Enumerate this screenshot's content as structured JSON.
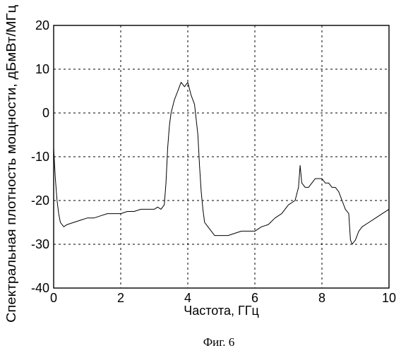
{
  "chart_data": {
    "type": "line",
    "title": "",
    "xlabel": "Частота, ГГц",
    "ylabel": "Спектральная плотность мощности, дБмВт/МГц",
    "xlim": [
      0,
      10
    ],
    "ylim": [
      -40,
      20
    ],
    "xticks": [
      "0",
      "2",
      "4",
      "6",
      "8",
      "10"
    ],
    "yticks": [
      "20",
      "10",
      "0",
      "-10",
      "-20",
      "-30",
      "-40"
    ],
    "grid": true,
    "series": [
      {
        "x": [
          0.0,
          0.05,
          0.1,
          0.15,
          0.2,
          0.3,
          0.4,
          0.6,
          0.8,
          1.0,
          1.2,
          1.4,
          1.6,
          1.8,
          2.0,
          2.2,
          2.4,
          2.6,
          2.8,
          3.0,
          3.1,
          3.2,
          3.3,
          3.35,
          3.4,
          3.45,
          3.5,
          3.6,
          3.7,
          3.8,
          3.9,
          4.0,
          4.1,
          4.2,
          4.3,
          4.35,
          4.4,
          4.45,
          4.5,
          4.6,
          4.7,
          4.8,
          5.0,
          5.2,
          5.4,
          5.6,
          5.8,
          6.0,
          6.2,
          6.4,
          6.6,
          6.8,
          7.0,
          7.2,
          7.3,
          7.35,
          7.4,
          7.5,
          7.6,
          7.7,
          7.8,
          7.9,
          8.0,
          8.1,
          8.2,
          8.3,
          8.4,
          8.5,
          8.6,
          8.7,
          8.8,
          8.85,
          8.9,
          9.0,
          9.1,
          9.2,
          9.4,
          9.6,
          9.8,
          10.0
        ],
        "y": [
          -8,
          -15,
          -20,
          -23,
          -25,
          -26,
          -25.5,
          -25,
          -24.5,
          -24,
          -24,
          -23.5,
          -23,
          -23,
          -23,
          -22.5,
          -22.5,
          -22,
          -22,
          -22,
          -21.5,
          -22,
          -21,
          -16,
          -8,
          -3,
          0,
          3,
          5,
          7,
          6,
          7,
          4,
          2,
          -5,
          -12,
          -18,
          -22,
          -25,
          -26,
          -27,
          -28,
          -28,
          -28,
          -27.5,
          -27,
          -27,
          -27,
          -26,
          -25.5,
          -24,
          -23,
          -21,
          -20,
          -17,
          -12,
          -16,
          -17,
          -17,
          -16,
          -15,
          -15,
          -15,
          -16,
          -16,
          -17,
          -17,
          -18,
          -20,
          -22,
          -23,
          -29,
          -30,
          -29,
          -27,
          -26,
          -25,
          -24,
          -23,
          -22
        ]
      }
    ]
  },
  "caption": "Фиг. 6"
}
